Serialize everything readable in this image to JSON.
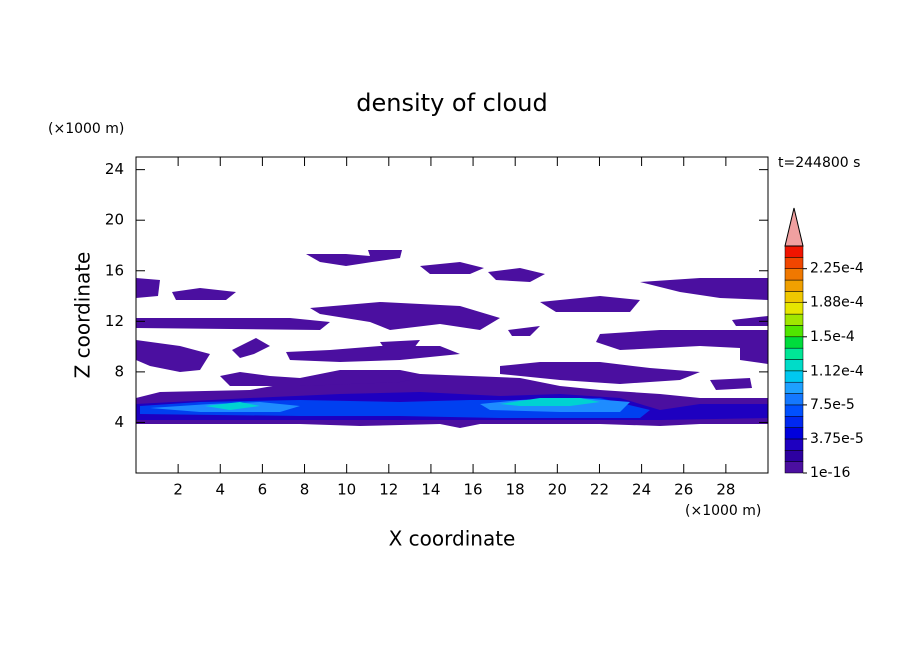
{
  "chart_data": {
    "type": "contour",
    "title": "density of cloud",
    "x_label": "X coordinate",
    "y_label": "Z coordinate",
    "x_unit": "(×1000 m)",
    "y_unit": "(×1000 m)",
    "time_label": "t=244800 s",
    "xlim": [
      0,
      30
    ],
    "xticks": [
      2,
      4,
      6,
      8,
      10,
      12,
      14,
      16,
      18,
      20,
      22,
      24,
      26,
      28
    ],
    "ylim": [
      0,
      25
    ],
    "yticks": [
      4,
      8,
      12,
      16,
      20,
      24
    ],
    "clim": [
      1e-16,
      0.00025
    ],
    "cticks": [
      {
        "value": 1e-16,
        "label": "1e-16"
      },
      {
        "value": 3.75e-05,
        "label": "3.75e-5"
      },
      {
        "value": 7.5e-05,
        "label": "7.5e-5"
      },
      {
        "value": 0.000112,
        "label": "1.12e-4"
      },
      {
        "value": 0.00015,
        "label": "1.5e-4"
      },
      {
        "value": 0.000188,
        "label": "1.88e-4"
      },
      {
        "value": 0.000225,
        "label": "2.25e-4"
      }
    ],
    "level_colors": [
      "#4b0fa0",
      "#2d00a0",
      "#1e00c0",
      "#0000dc",
      "#0028f0",
      "#0050ff",
      "#1478ff",
      "#1ea0ff",
      "#00c8f0",
      "#00dcc8",
      "#00e696",
      "#00dc3c",
      "#50e600",
      "#a0e600",
      "#e6e600",
      "#f0c800",
      "#f0a000",
      "#f07800",
      "#f04600",
      "#f01400"
    ],
    "over_color": "#f0a0a0"
  }
}
